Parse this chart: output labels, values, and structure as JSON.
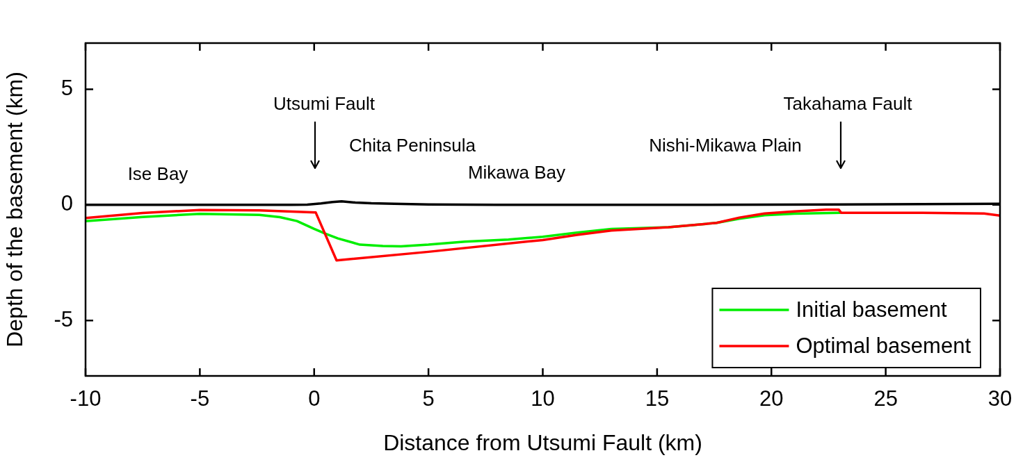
{
  "chart_data": {
    "type": "line",
    "xlabel": "Distance from Utsumi Fault (km)",
    "ylabel": "Depth of the basement (km)",
    "xlim": [
      -10,
      30
    ],
    "xticks": [
      -10,
      -5,
      0,
      5,
      10,
      15,
      20,
      25,
      30
    ],
    "ylim": [
      -7.4,
      7
    ],
    "yticks": [
      -5,
      0,
      5
    ],
    "grid": false,
    "legend": "bottom right",
    "marker": "none",
    "line_style": "solid",
    "series": [
      {
        "color": "#000000",
        "x": [
          -10,
          -5,
          -1,
          -0.3,
          0.3,
          0.8,
          1.2,
          1.8,
          2.5,
          3.5,
          5,
          8,
          15,
          23,
          30
        ],
        "values": [
          0,
          0,
          0,
          0.01,
          0.06,
          0.12,
          0.15,
          0.1,
          0.07,
          0.05,
          0.02,
          0,
          0,
          0.02,
          0.05
        ]
      },
      {
        "name": "Initial basement",
        "color": "#00ee00",
        "x": [
          -10,
          -7.5,
          -5,
          -2.4,
          -1.5,
          -0.75,
          0,
          0.5,
          1.04,
          2,
          3,
          3.8,
          5,
          6.6,
          8.5,
          10,
          11.5,
          13,
          15.5,
          17.6,
          18.6,
          19.7,
          21,
          23
        ],
        "values": [
          -0.7,
          -0.52,
          -0.39,
          -0.43,
          -0.53,
          -0.7,
          -1.04,
          -1.25,
          -1.45,
          -1.72,
          -1.78,
          -1.79,
          -1.72,
          -1.59,
          -1.5,
          -1.38,
          -1.2,
          -1.04,
          -0.97,
          -0.78,
          -0.6,
          -0.45,
          -0.38,
          -0.34
        ]
      },
      {
        "name": "Optimal basement",
        "color": "#ff0000",
        "x": [
          -10,
          -7.5,
          -5,
          -2.4,
          0.07,
          0.98,
          5,
          10,
          11.5,
          13,
          15.5,
          17.6,
          18.6,
          19.7,
          21,
          22.4,
          22.95,
          23.05,
          26.6,
          29.3,
          30
        ],
        "values": [
          -0.57,
          -0.35,
          -0.22,
          -0.24,
          -0.33,
          -2.4,
          -2.03,
          -1.52,
          -1.3,
          -1.11,
          -0.97,
          -0.78,
          -0.55,
          -0.37,
          -0.28,
          -0.21,
          -0.21,
          -0.34,
          -0.34,
          -0.37,
          -0.46
        ]
      }
    ],
    "annotations": [
      "Ise Bay",
      "Utsumi Fault",
      "Chita Peninsula",
      "Mikawa Bay",
      "Nishi-Mikawa Plain",
      "Takahama Fault"
    ]
  }
}
